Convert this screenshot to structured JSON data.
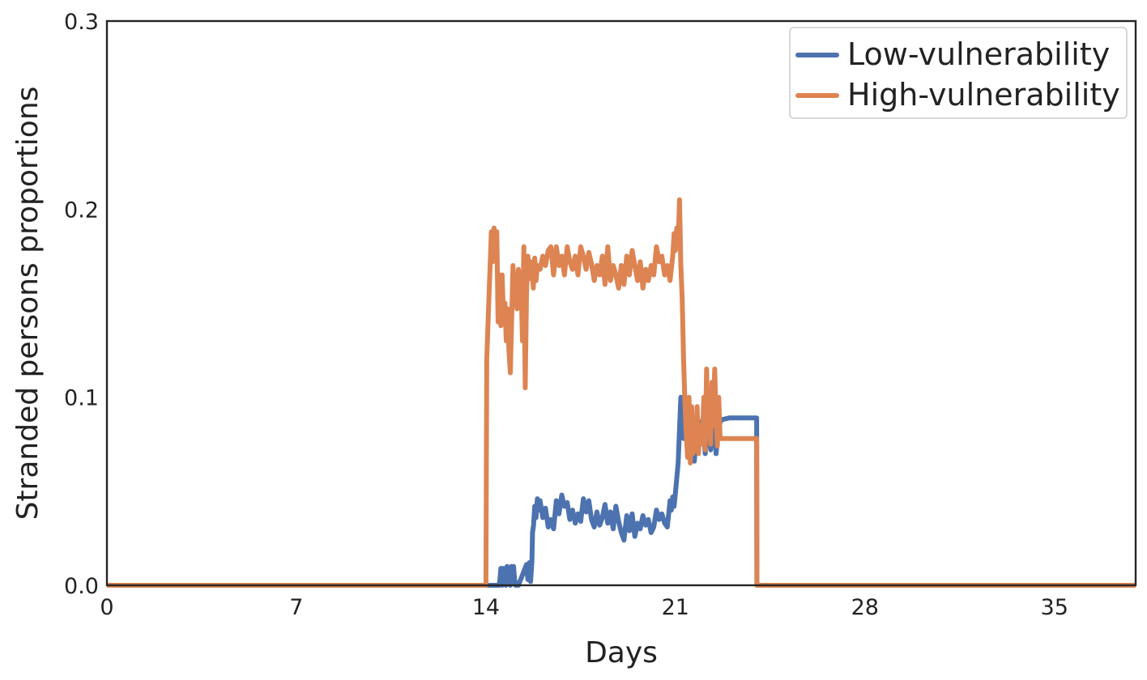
{
  "chart_data": {
    "type": "line",
    "xlabel": "Days",
    "ylabel": "Stranded persons proportions",
    "xlim": [
      0,
      38
    ],
    "ylim": [
      0,
      0.3
    ],
    "xticks": [
      0,
      7,
      14,
      21,
      28,
      35
    ],
    "xtick_labels": [
      "0",
      "7",
      "14",
      "21",
      "28",
      "35"
    ],
    "yticks": [
      0,
      0.1,
      0.2,
      0.3
    ],
    "ytick_labels": [
      "0.0",
      "0.1",
      "0.2",
      "0.3"
    ],
    "grid": false,
    "legend_position": "top-right",
    "series": [
      {
        "name": "Low-vulnerability",
        "color": "#4c72b0",
        "x": [
          0,
          14.5,
          14.55,
          14.6,
          14.62,
          14.66,
          14.7,
          14.74,
          14.78,
          14.82,
          14.86,
          14.9,
          14.94,
          14.98,
          15.02,
          15.06,
          15.1,
          15.14,
          15.2,
          15.5,
          15.55,
          15.6,
          15.65,
          15.7,
          15.72,
          15.76,
          15.8,
          15.85,
          15.9,
          15.95,
          16.0,
          16.1,
          16.2,
          16.3,
          16.4,
          16.5,
          16.6,
          16.7,
          16.8,
          16.9,
          17.0,
          17.1,
          17.2,
          17.3,
          17.4,
          17.5,
          17.6,
          17.7,
          17.8,
          17.9,
          18.0,
          18.1,
          18.2,
          18.3,
          18.4,
          18.5,
          18.6,
          18.7,
          18.8,
          18.9,
          19.0,
          19.1,
          19.2,
          19.3,
          19.4,
          19.5,
          19.6,
          19.7,
          19.8,
          19.9,
          20.0,
          20.1,
          20.2,
          20.3,
          20.4,
          20.5,
          20.6,
          20.7,
          20.8,
          20.85,
          20.9,
          20.95,
          21.0,
          21.1,
          21.2,
          21.3,
          21.4,
          21.5,
          21.6,
          21.7,
          21.8,
          21.9,
          22.0,
          22.1,
          22.2,
          22.3,
          22.4,
          22.5,
          22.6,
          22.7,
          23.0,
          23.5,
          24.0,
          24.01,
          38
        ],
        "y": [
          0,
          0,
          0.009,
          0,
          0.009,
          0.002,
          0.009,
          0,
          0.01,
          0.002,
          0.009,
          0,
          0.01,
          0.002,
          0.01,
          0.003,
          0,
          0,
          0,
          0.011,
          0.003,
          0.012,
          0.002,
          0.013,
          0.028,
          0.032,
          0.042,
          0.036,
          0.046,
          0.04,
          0.045,
          0.036,
          0.041,
          0.031,
          0.035,
          0.03,
          0.045,
          0.038,
          0.048,
          0.042,
          0.044,
          0.035,
          0.04,
          0.033,
          0.038,
          0.034,
          0.046,
          0.039,
          0.045,
          0.035,
          0.031,
          0.039,
          0.032,
          0.036,
          0.043,
          0.033,
          0.039,
          0.03,
          0.042,
          0.034,
          0.028,
          0.024,
          0.037,
          0.029,
          0.038,
          0.026,
          0.033,
          0.03,
          0.037,
          0.032,
          0.035,
          0.028,
          0.031,
          0.04,
          0.035,
          0.038,
          0.033,
          0.031,
          0.045,
          0.04,
          0.047,
          0.042,
          0.049,
          0.065,
          0.1,
          0.078,
          0.094,
          0.072,
          0.083,
          0.066,
          0.09,
          0.075,
          0.088,
          0.07,
          0.099,
          0.072,
          0.094,
          0.07,
          0.085,
          0.088,
          0.089,
          0.089,
          0.089,
          0,
          0
        ]
      },
      {
        "name": "High-vulnerability",
        "color": "#dd8452",
        "x": [
          0,
          14.0,
          14.03,
          14.1,
          14.2,
          14.25,
          14.3,
          14.35,
          14.4,
          14.45,
          14.5,
          14.55,
          14.6,
          14.65,
          14.7,
          14.75,
          14.8,
          14.85,
          14.9,
          14.95,
          15.0,
          15.05,
          15.1,
          15.15,
          15.2,
          15.25,
          15.3,
          15.35,
          15.4,
          15.45,
          15.5,
          15.55,
          15.6,
          15.65,
          15.7,
          15.75,
          15.8,
          15.85,
          15.9,
          16.0,
          16.1,
          16.2,
          16.3,
          16.4,
          16.5,
          16.6,
          16.7,
          16.8,
          16.9,
          17.0,
          17.1,
          17.2,
          17.3,
          17.4,
          17.5,
          17.6,
          17.7,
          17.8,
          17.9,
          18.0,
          18.1,
          18.2,
          18.3,
          18.4,
          18.5,
          18.6,
          18.7,
          18.8,
          18.9,
          19.0,
          19.1,
          19.2,
          19.3,
          19.4,
          19.5,
          19.6,
          19.7,
          19.8,
          19.9,
          20.0,
          20.1,
          20.2,
          20.3,
          20.4,
          20.5,
          20.6,
          20.7,
          20.8,
          20.9,
          20.95,
          21.0,
          21.05,
          21.1,
          21.15,
          21.2,
          21.25,
          21.3,
          21.35,
          21.4,
          21.45,
          21.5,
          21.55,
          21.6,
          21.65,
          21.7,
          21.75,
          21.8,
          21.85,
          21.9,
          21.95,
          22.0,
          22.05,
          22.1,
          22.15,
          22.2,
          22.25,
          22.3,
          22.35,
          22.4,
          22.45,
          22.5,
          22.55,
          22.6,
          22.65,
          22.7,
          23.0,
          23.5,
          24.0,
          24.01,
          38
        ],
        "y": [
          0,
          0,
          0.12,
          0.148,
          0.188,
          0.172,
          0.19,
          0.175,
          0.188,
          0.14,
          0.165,
          0.138,
          0.165,
          0.142,
          0.15,
          0.13,
          0.147,
          0.125,
          0.113,
          0.14,
          0.17,
          0.155,
          0.163,
          0.147,
          0.168,
          0.158,
          0.16,
          0.13,
          0.18,
          0.105,
          0.155,
          0.175,
          0.163,
          0.172,
          0.168,
          0.158,
          0.174,
          0.162,
          0.17,
          0.168,
          0.175,
          0.17,
          0.178,
          0.18,
          0.165,
          0.18,
          0.17,
          0.175,
          0.165,
          0.18,
          0.172,
          0.168,
          0.175,
          0.165,
          0.18,
          0.175,
          0.168,
          0.177,
          0.171,
          0.162,
          0.17,
          0.165,
          0.175,
          0.16,
          0.18,
          0.162,
          0.17,
          0.165,
          0.158,
          0.17,
          0.16,
          0.175,
          0.165,
          0.178,
          0.17,
          0.162,
          0.172,
          0.158,
          0.168,
          0.162,
          0.17,
          0.165,
          0.18,
          0.172,
          0.175,
          0.165,
          0.17,
          0.162,
          0.175,
          0.187,
          0.178,
          0.19,
          0.182,
          0.205,
          0.17,
          0.152,
          0.12,
          0.098,
          0.08,
          0.068,
          0.1,
          0.065,
          0.095,
          0.07,
          0.087,
          0.072,
          0.095,
          0.07,
          0.085,
          0.075,
          0.08,
          0.1,
          0.072,
          0.115,
          0.082,
          0.092,
          0.075,
          0.108,
          0.085,
          0.115,
          0.09,
          0.074,
          0.1,
          0.078,
          0.078,
          0.078,
          0.078,
          0.078,
          0,
          0
        ]
      }
    ]
  }
}
